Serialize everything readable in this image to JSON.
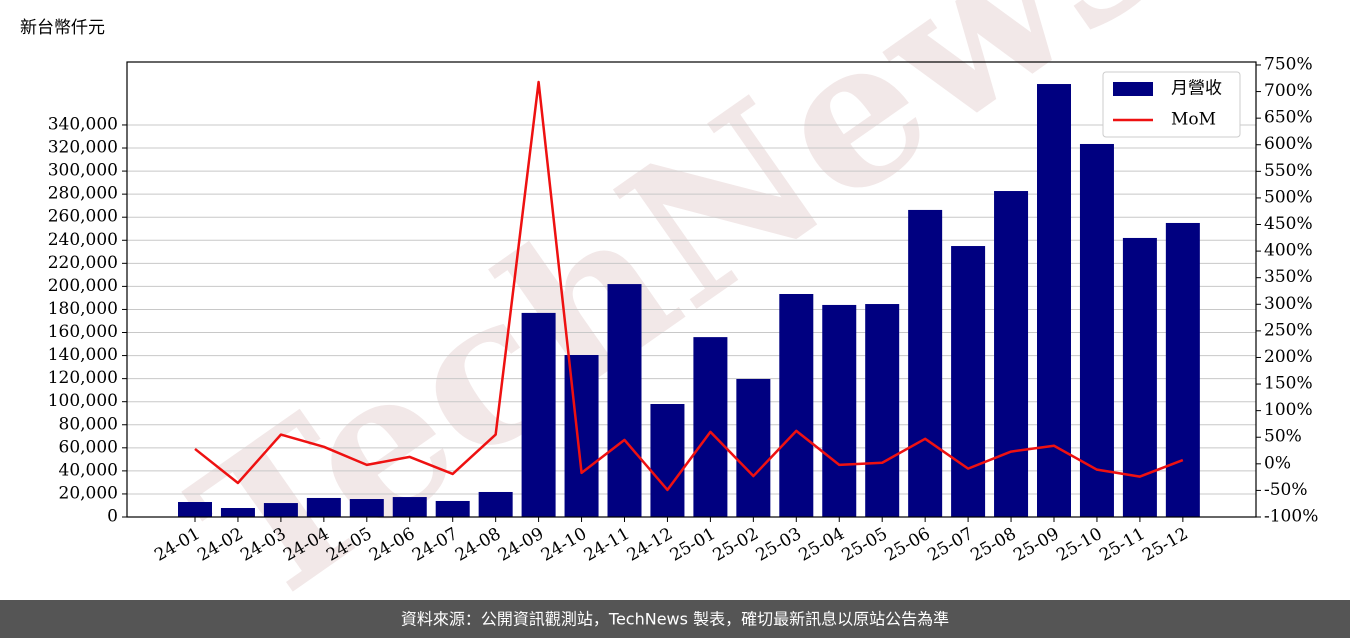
{
  "chart_data": {
    "type": "bar_line",
    "unit_label": "新台幣仟元",
    "watermark": "TechNews",
    "source": "資料來源：公開資訊觀測站，TechNews 製表，確切最新訊息以原站公告為準",
    "categories": [
      "24-01",
      "24-02",
      "24-03",
      "24-04",
      "24-05",
      "24-06",
      "24-07",
      "24-08",
      "24-09",
      "24-10",
      "24-11",
      "24-12",
      "25-01",
      "25-02",
      "25-03",
      "25-04",
      "25-05",
      "25-06",
      "25-07",
      "25-08",
      "25-09",
      "25-10",
      "25-11",
      "25-12"
    ],
    "series": [
      {
        "name": "月營收",
        "color": "#000080",
        "kind": "bar",
        "axis": "y",
        "values": [
          13000,
          7800,
          12100,
          16500,
          15600,
          17300,
          13900,
          21700,
          177000,
          140500,
          202000,
          98000,
          156000,
          119700,
          193400,
          183900,
          184700,
          266300,
          235000,
          282700,
          375500,
          323500,
          242000,
          255000
        ]
      },
      {
        "name": "MoM",
        "color": "#ee1111",
        "kind": "line",
        "axis": "y2",
        "values": [
          28,
          -36,
          55,
          32,
          -2,
          13,
          -19,
          55,
          718,
          -17,
          45,
          -49,
          60,
          -23,
          62,
          -2,
          2,
          47,
          -9,
          23,
          34,
          -11,
          -24,
          7
        ]
      }
    ],
    "ylim": [
      0,
      394600
    ],
    "yticks": [
      0,
      {
        "value": 20000,
        "label": "20,000"
      },
      {
        "value": 40000,
        "label": "40,000"
      },
      {
        "value": 60000,
        "label": "60,000"
      },
      {
        "value": 80000,
        "label": "80,000"
      },
      {
        "value": 100000,
        "label": "100,000"
      },
      {
        "value": 120000,
        "label": "120,000"
      },
      {
        "value": 140000,
        "label": "140,000"
      },
      {
        "value": 160000,
        "label": "160,000"
      },
      {
        "value": 180000,
        "label": "180,000"
      },
      {
        "value": 200000,
        "label": "200,000"
      },
      {
        "value": 220000,
        "label": "220,000"
      },
      {
        "value": 240000,
        "label": "240,000"
      },
      {
        "value": 260000,
        "label": "260,000"
      },
      {
        "value": 280000,
        "label": "280,000"
      },
      {
        "value": 300000,
        "label": "300,000"
      },
      {
        "value": 320000,
        "label": "320,000"
      },
      {
        "value": 340000,
        "label": "340,000"
      }
    ],
    "y2lim": [
      -100,
      755.6
    ],
    "y2ticks": [
      {
        "value": -100,
        "label": "-100%"
      },
      {
        "value": -50,
        "label": "-50%"
      },
      {
        "value": 0,
        "label": "0%"
      },
      {
        "value": 50,
        "label": "50%"
      },
      {
        "value": 100,
        "label": "100%"
      },
      {
        "value": 150,
        "label": "150%"
      },
      {
        "value": 200,
        "label": "200%"
      },
      {
        "value": 250,
        "label": "250%"
      },
      {
        "value": 300,
        "label": "300%"
      },
      {
        "value": 350,
        "label": "350%"
      },
      {
        "value": 400,
        "label": "400%"
      },
      {
        "value": 450,
        "label": "450%"
      },
      {
        "value": 500,
        "label": "500%"
      },
      {
        "value": 550,
        "label": "550%"
      },
      {
        "value": 600,
        "label": "600%"
      },
      {
        "value": 650,
        "label": "650%"
      },
      {
        "value": 700,
        "label": "700%"
      },
      {
        "value": 750,
        "label": "750%"
      }
    ],
    "grid": true,
    "legend": "upper right"
  }
}
